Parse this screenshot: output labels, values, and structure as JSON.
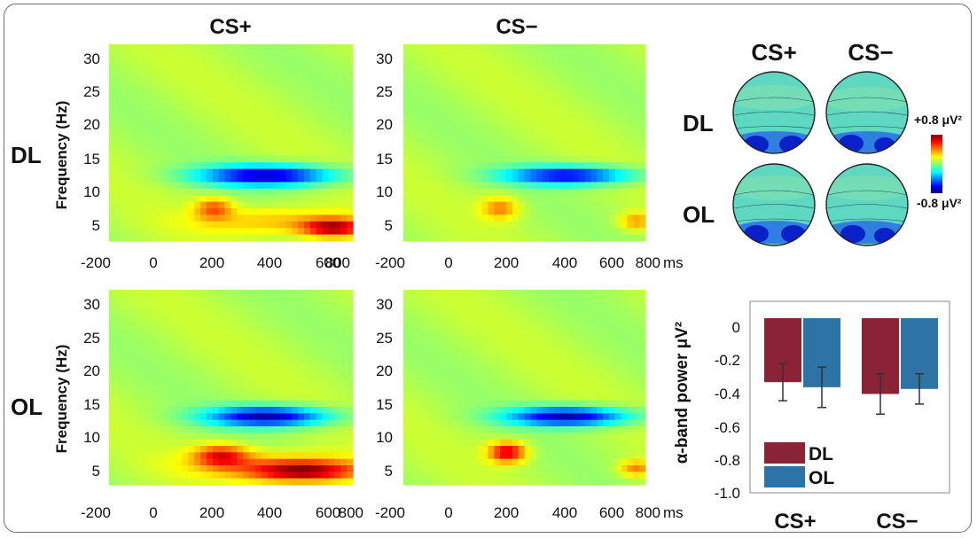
{
  "chart_data": [
    {
      "type": "heatmap",
      "row_labels": [
        "DL",
        "OL"
      ],
      "column_labels": [
        "CS+",
        "CS−"
      ],
      "ylabel": "Frequency (Hz)",
      "x_ticks": [
        "-200",
        "0",
        "200",
        "400",
        "600",
        "800"
      ],
      "x_unit": "ms",
      "y_ticks": [
        "30",
        "25",
        "20",
        "15",
        "10",
        "5"
      ],
      "xlim": [
        -200,
        800
      ],
      "ylim": [
        2,
        32
      ],
      "colorscale": "jet",
      "panels": [
        {
          "row": "DL",
          "condition": "CS+",
          "features": [
            {
              "name": "alpha-suppression",
              "x_center": 450,
              "y_center": 12,
              "x_half_width": 320,
              "y_half_width": 1.8,
              "value": -1.0
            },
            {
              "name": "theta-increase",
              "x_center": 230,
              "y_center": 7,
              "x_half_width": 90,
              "y_half_width": 2,
              "value": 0.45
            },
            {
              "name": "late-low-increase",
              "x_center": 720,
              "y_center": 4,
              "x_half_width": 150,
              "y_half_width": 1.6,
              "value": 0.75
            },
            {
              "name": "low-frequency-band",
              "x_center": 500,
              "y_center": 5,
              "x_half_width": 400,
              "y_half_width": 2.5,
              "value": 0.3
            }
          ]
        },
        {
          "row": "DL",
          "condition": "CS−",
          "features": [
            {
              "name": "alpha-suppression",
              "x_center": 480,
              "y_center": 12,
              "x_half_width": 300,
              "y_half_width": 1.6,
              "value": -0.9
            },
            {
              "name": "theta-increase",
              "x_center": 200,
              "y_center": 7,
              "x_half_width": 90,
              "y_half_width": 2,
              "value": 0.4
            },
            {
              "name": "late-low-increase",
              "x_center": 760,
              "y_center": 5,
              "x_half_width": 80,
              "y_half_width": 1.5,
              "value": 0.35
            }
          ]
        },
        {
          "row": "OL",
          "condition": "CS+",
          "features": [
            {
              "name": "alpha-suppression",
              "x_center": 450,
              "y_center": 12.5,
              "x_half_width": 290,
              "y_half_width": 1.8,
              "value": -1.0
            },
            {
              "name": "theta-increase",
              "x_center": 260,
              "y_center": 6.5,
              "x_half_width": 130,
              "y_half_width": 2,
              "value": 0.6
            },
            {
              "name": "late-low-increase",
              "x_center": 600,
              "y_center": 4,
              "x_half_width": 260,
              "y_half_width": 1.8,
              "value": 0.7
            },
            {
              "name": "low-frequency-band",
              "x_center": 500,
              "y_center": 5,
              "x_half_width": 420,
              "y_half_width": 2.5,
              "value": 0.35
            }
          ]
        },
        {
          "row": "OL",
          "condition": "CS−",
          "features": [
            {
              "name": "alpha-suppression",
              "x_center": 480,
              "y_center": 12.5,
              "x_half_width": 290,
              "y_half_width": 1.7,
              "value": -1.0
            },
            {
              "name": "theta-increase",
              "x_center": 230,
              "y_center": 7,
              "x_half_width": 90,
              "y_half_width": 1.8,
              "value": 0.75
            },
            {
              "name": "late-low-increase",
              "x_center": 760,
              "y_center": 4.5,
              "x_half_width": 80,
              "y_half_width": 1.5,
              "value": 0.4
            }
          ]
        }
      ]
    },
    {
      "type": "topography",
      "column_labels": [
        "CS+",
        "CS−"
      ],
      "row_labels": [
        "DL",
        "OL"
      ],
      "colorbar": {
        "max_label": "+0.8 μV²",
        "min_label": "-0.8 μV²",
        "range": [
          -0.8,
          0.8
        ]
      }
    },
    {
      "type": "bar",
      "categories": [
        "CS+",
        "CS−"
      ],
      "series": [
        {
          "name": "DL",
          "values": [
            -0.38,
            -0.45
          ],
          "error": [
            0.11,
            0.12
          ]
        },
        {
          "name": "OL",
          "values": [
            -0.41,
            -0.42
          ],
          "error": [
            0.12,
            0.09
          ]
        }
      ],
      "ylabel": "α-band power μV²",
      "y_ticks": [
        "0",
        "-0.2",
        "-0.4",
        "-0.6",
        "-0.8",
        "-1.0"
      ],
      "ylim": [
        -1.0,
        0.1
      ],
      "legend_position": "bottom-left"
    }
  ],
  "colors": {
    "DL": "#8b2336",
    "OL": "#2e73a6",
    "frame": "#6f6f6f"
  }
}
